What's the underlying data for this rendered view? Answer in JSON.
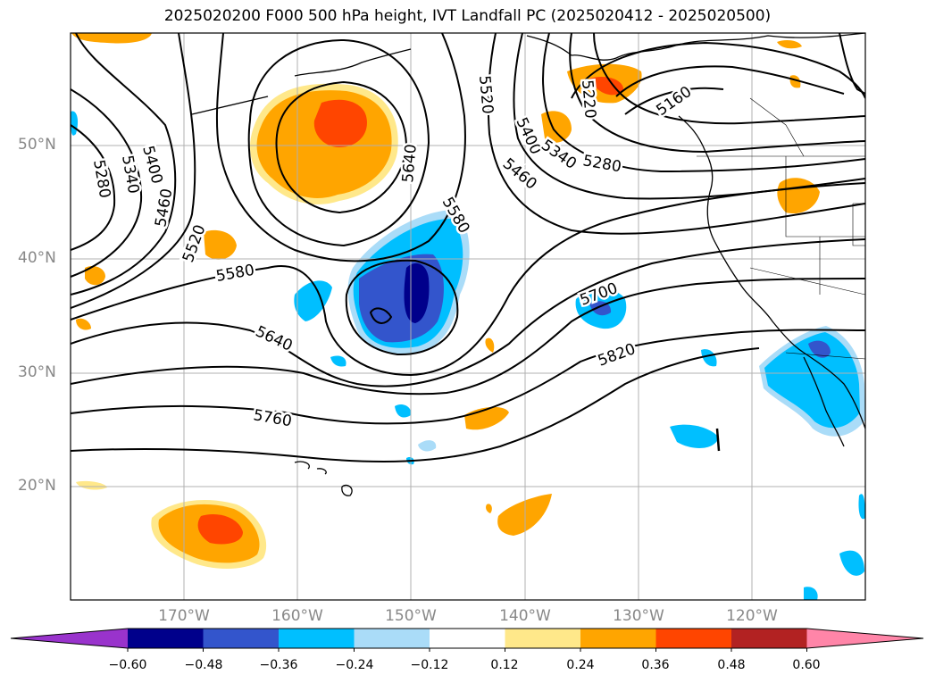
{
  "title": "2025020200 F000 500 hPa height, IVT Landfall PC (2025020412 - 2025020500)",
  "lat_labels": [
    "50°N",
    "40°N",
    "30°N",
    "20°N"
  ],
  "lon_labels": [
    "170°W",
    "160°W",
    "150°W",
    "140°W",
    "130°W",
    "120°W"
  ],
  "contour_labels": {
    "c5280a": "5280",
    "c5340a": "5340",
    "c5400a": "5400",
    "c5460a": "5460",
    "c5520a": "5520",
    "c5580a": "5580",
    "c5640a": "5640",
    "c5520b": "5520",
    "c5580b": "5580",
    "c5640b": "5640",
    "c5400b": "5400",
    "c5340b": "5340",
    "c5280b": "5280",
    "c5460b": "5460",
    "c5220": "5220",
    "c5160": "5160",
    "c5700": "5700",
    "c5820": "5820",
    "c5760": "5760"
  },
  "colorbar": {
    "ticks": [
      "−0.60",
      "−0.48",
      "−0.36",
      "−0.24",
      "−0.12",
      "0.12",
      "0.24",
      "0.36",
      "0.48",
      "0.60"
    ],
    "colors": [
      "#9933cc",
      "#00008b",
      "#3355cc",
      "#00bfff",
      "#aadcf8",
      "#ffffff",
      "#ffe88a",
      "#ffa500",
      "#ff4500",
      "#b22222",
      "#ff85a8"
    ]
  }
}
